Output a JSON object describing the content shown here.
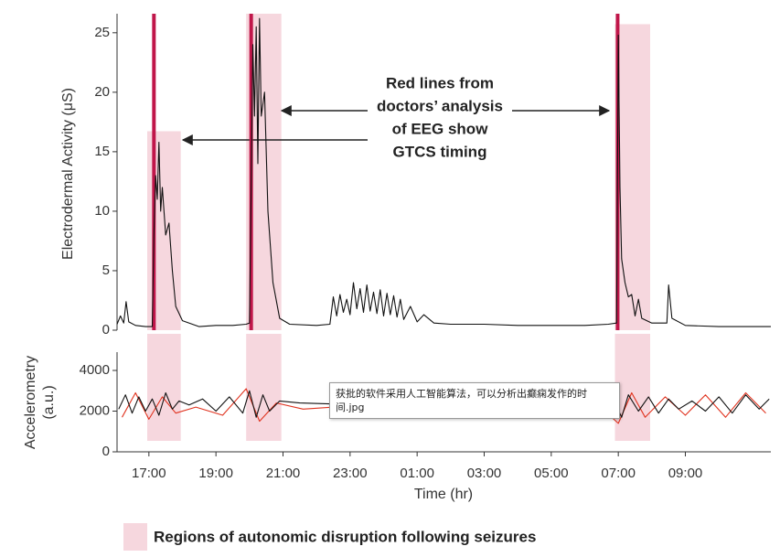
{
  "chart_data": [
    {
      "type": "line",
      "ylabel": "Electrodermal Activity (μS)",
      "xlim": [
        16.05,
        35.55
      ],
      "ylim": [
        0,
        26.6
      ],
      "yticks": [
        0,
        5,
        10,
        15,
        20,
        25
      ],
      "series": [
        {
          "color": "#111111",
          "x": [
            16.05,
            16.15,
            16.25,
            16.32,
            16.4,
            16.6,
            16.9,
            17.1,
            17.15,
            17.2,
            17.25,
            17.3,
            17.35,
            17.4,
            17.5,
            17.6,
            17.7,
            17.8,
            18,
            18.5,
            19,
            19.5,
            19.9,
            20.0,
            20.05,
            20.1,
            20.15,
            20.2,
            20.25,
            20.3,
            20.35,
            20.45,
            20.55,
            20.7,
            20.9,
            21.2,
            22,
            22.4,
            22.5,
            22.6,
            22.7,
            22.8,
            22.9,
            23,
            23.1,
            23.2,
            23.3,
            23.4,
            23.5,
            23.6,
            23.7,
            23.8,
            23.9,
            24,
            24.1,
            24.2,
            24.3,
            24.4,
            24.5,
            24.6,
            24.8,
            25,
            25.2,
            25.5,
            26,
            27,
            28,
            29,
            30,
            30.7,
            30.95,
            31.0,
            31.05,
            31.1,
            31.2,
            31.3,
            31.4,
            31.5,
            31.6,
            31.7,
            32,
            32.45,
            32.5,
            32.6,
            33,
            34,
            35,
            35.55
          ],
          "values": [
            0.5,
            1.2,
            0.6,
            2.4,
            0.7,
            0.4,
            0.3,
            0.3,
            8,
            13,
            11,
            15.8,
            10,
            12,
            8,
            9,
            5,
            2,
            0.8,
            0.3,
            0.4,
            0.4,
            0.5,
            0.6,
            12,
            24,
            18,
            25.5,
            14,
            26.2,
            18,
            20,
            10,
            4,
            1,
            0.5,
            0.4,
            0.5,
            2.8,
            1.2,
            3,
            1.5,
            2.6,
            1.3,
            4,
            1.8,
            3.5,
            1.5,
            3.8,
            1.6,
            3.2,
            1.4,
            3.4,
            1.2,
            3.1,
            1.3,
            2.9,
            1.1,
            2.6,
            0.9,
            2,
            0.7,
            1.3,
            0.6,
            0.5,
            0.5,
            0.4,
            0.4,
            0.4,
            0.5,
            0.6,
            24.8,
            12,
            6,
            4,
            2.8,
            3,
            1.2,
            2.6,
            1,
            0.6,
            0.6,
            3.8,
            1,
            0.4,
            0.3,
            0.3,
            0.3
          ]
        }
      ],
      "events": [
        17.15,
        20.05,
        30.98
      ],
      "event_color": "#c0164a",
      "regions": {
        "label": "Regions of autonomic disruption following seizures",
        "color": "#f6d7de",
        "spans": [
          [
            16.95,
            17.95
          ],
          [
            19.9,
            20.95
          ],
          [
            30.9,
            31.95
          ]
        ]
      },
      "annotation": [
        "Red lines from",
        "doctors’ analysis",
        "of EEG show",
        "GTCS timing"
      ]
    },
    {
      "type": "line",
      "ylabel": [
        "Accelerometry",
        "(a.u.)"
      ],
      "xlabel": "Time (hr)",
      "xlim": [
        16.05,
        35.55
      ],
      "xticks": [
        {
          "value": 17,
          "label": "17:00"
        },
        {
          "value": 19,
          "label": "19:00"
        },
        {
          "value": 21,
          "label": "21:00"
        },
        {
          "value": 23,
          "label": "23:00"
        },
        {
          "value": 25,
          "label": "01:00"
        },
        {
          "value": 27,
          "label": "03:00"
        },
        {
          "value": 29,
          "label": "05:00"
        },
        {
          "value": 31,
          "label": "07:00"
        },
        {
          "value": 33,
          "label": "09:00"
        }
      ],
      "ylim": [
        0,
        4900
      ],
      "yticks": [
        0,
        2000,
        4000
      ],
      "series": [
        {
          "color": "#e0321e",
          "x": [
            16.2,
            16.6,
            17.0,
            17.4,
            17.8,
            18.4,
            19.2,
            19.9,
            20.3,
            20.8,
            21.6,
            23,
            25,
            27,
            29,
            30.6,
            31.0,
            31.4,
            31.8,
            32.4,
            33,
            33.6,
            34.2,
            34.8,
            35.4
          ],
          "values": [
            1700,
            2900,
            1600,
            2700,
            1900,
            2200,
            1800,
            3100,
            1500,
            2400,
            2100,
            2250,
            2200,
            2250,
            2150,
            2000,
            1400,
            2900,
            1700,
            2700,
            1800,
            2800,
            1700,
            2900,
            1900
          ]
        },
        {
          "color": "#111111",
          "x": [
            16.1,
            16.3,
            16.5,
            16.7,
            16.9,
            17.1,
            17.3,
            17.5,
            17.7,
            17.9,
            18.2,
            18.6,
            19.0,
            19.4,
            19.8,
            20.0,
            20.2,
            20.4,
            20.6,
            20.9,
            21.5,
            22.5,
            24,
            26,
            28,
            29.5,
            30.5,
            30.9,
            31.1,
            31.3,
            31.6,
            31.9,
            32.2,
            32.5,
            32.8,
            33.2,
            33.6,
            34,
            34.4,
            34.8,
            35.2,
            35.5
          ],
          "values": [
            2100,
            2800,
            1900,
            2700,
            2000,
            2600,
            1800,
            2900,
            2100,
            2500,
            2300,
            2600,
            2000,
            2700,
            1900,
            3000,
            1700,
            2800,
            2000,
            2500,
            2400,
            2350,
            2350,
            2300,
            2350,
            2300,
            2300,
            2400,
            1700,
            2800,
            2000,
            2700,
            1900,
            2600,
            2100,
            2500,
            2000,
            2700,
            1900,
            2800,
            2100,
            2600
          ]
        }
      ]
    }
  ],
  "tooltip": "获批的软件采用人工智能算法，可以分析出癫痫发作的时间.jpg"
}
